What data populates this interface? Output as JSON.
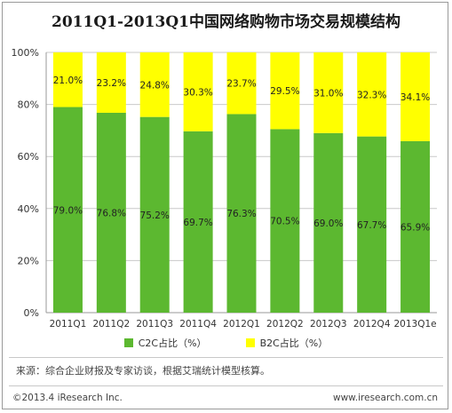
{
  "title": "2011Q1-2013Q1中国网络购物市场交易规模结构",
  "source_text": "来源：综合企业财报及专家访谈，根据艾瑞统计模型核算。",
  "footer": {
    "copyright": "©2013.4 iResearch Inc.",
    "website": "www.iresearch.com.cn"
  },
  "colors": {
    "c2c": "#5cb830",
    "b2c": "#ffff00",
    "grid": "#c9c9c9",
    "axis": "#9a9a9a"
  },
  "chart_data": {
    "type": "bar",
    "stacked": true,
    "categories": [
      "2011Q1",
      "2011Q2",
      "2011Q3",
      "2011Q4",
      "2012Q1",
      "2012Q2",
      "2012Q3",
      "2012Q4",
      "2013Q1e"
    ],
    "series": [
      {
        "name": "C2C占比（%）",
        "values": [
          79.0,
          76.8,
          75.2,
          69.7,
          76.3,
          70.5,
          69.0,
          67.7,
          65.9
        ]
      },
      {
        "name": "B2C占比（%）",
        "values": [
          21.0,
          23.2,
          24.8,
          30.3,
          23.7,
          29.5,
          31.0,
          32.3,
          34.1
        ]
      }
    ],
    "ylim": [
      0,
      100
    ],
    "yticks": [
      "0%",
      "20%",
      "40%",
      "60%",
      "80%",
      "100%"
    ],
    "grid": true,
    "legend_position": "bottom"
  }
}
